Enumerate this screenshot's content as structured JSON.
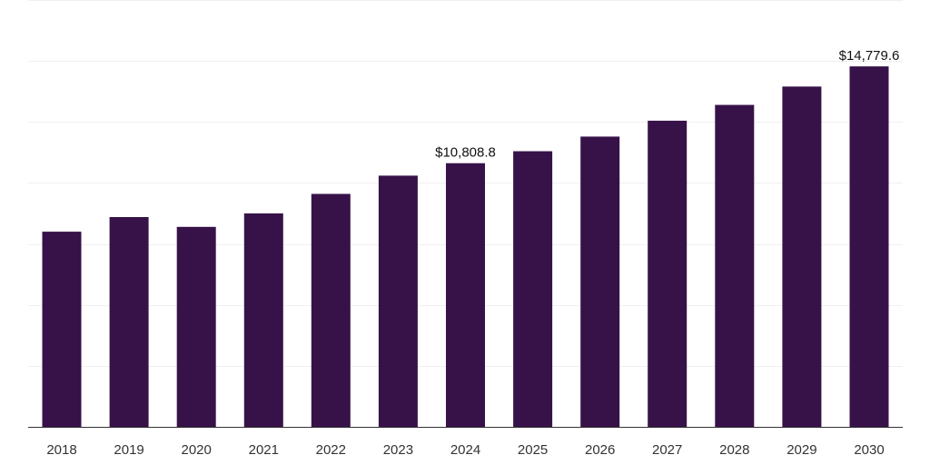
{
  "chart_data": {
    "type": "bar",
    "categories": [
      "2018",
      "2019",
      "2020",
      "2021",
      "2022",
      "2023",
      "2024",
      "2025",
      "2026",
      "2027",
      "2028",
      "2029",
      "2030"
    ],
    "values": [
      8000,
      8600,
      8200,
      8750,
      9550,
      10300,
      10808.8,
      11300,
      11900,
      12550,
      13200,
      13950,
      14779.6
    ],
    "data_labels": [
      {
        "index": 6,
        "text": "$10,808.8"
      },
      {
        "index": 12,
        "text": "$14,779.6"
      }
    ],
    "title": "",
    "xlabel": "",
    "ylabel": "",
    "ylim": [
      0,
      17500
    ],
    "grid": true,
    "legend": "none",
    "bar_color": "#371249",
    "grid_color": "#f0f0f0",
    "axis_color": "#333333"
  }
}
